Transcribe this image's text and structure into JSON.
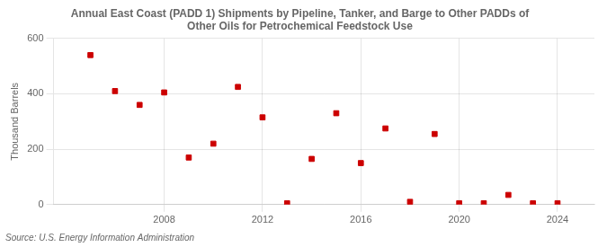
{
  "chart_data": {
    "type": "scatter",
    "title": "Annual East Coast (PADD 1) Shipments by Pipeline, Tanker, and Barge to Other PADDs of\nOther Oils for Petrochemical Feedstock Use",
    "ylabel": "Thousand Barrels",
    "source": "Source: U.S. Energy Information Administration",
    "x": [
      2005,
      2006,
      2007,
      2008,
      2009,
      2010,
      2011,
      2012,
      2013,
      2014,
      2015,
      2016,
      2017,
      2018,
      2019,
      2020,
      2021,
      2022,
      2023,
      2024
    ],
    "values": [
      540,
      410,
      360,
      405,
      170,
      220,
      425,
      315,
      5,
      165,
      330,
      150,
      275,
      10,
      255,
      5,
      5,
      35,
      5,
      5
    ],
    "color": "#cc0000",
    "marker": "square",
    "xlim": [
      2003.5,
      2025.5
    ],
    "ylim": [
      0,
      600
    ],
    "xticks": [
      2008,
      2012,
      2016,
      2020,
      2024
    ],
    "yticks": [
      0,
      200,
      400,
      600
    ],
    "grid": true
  }
}
